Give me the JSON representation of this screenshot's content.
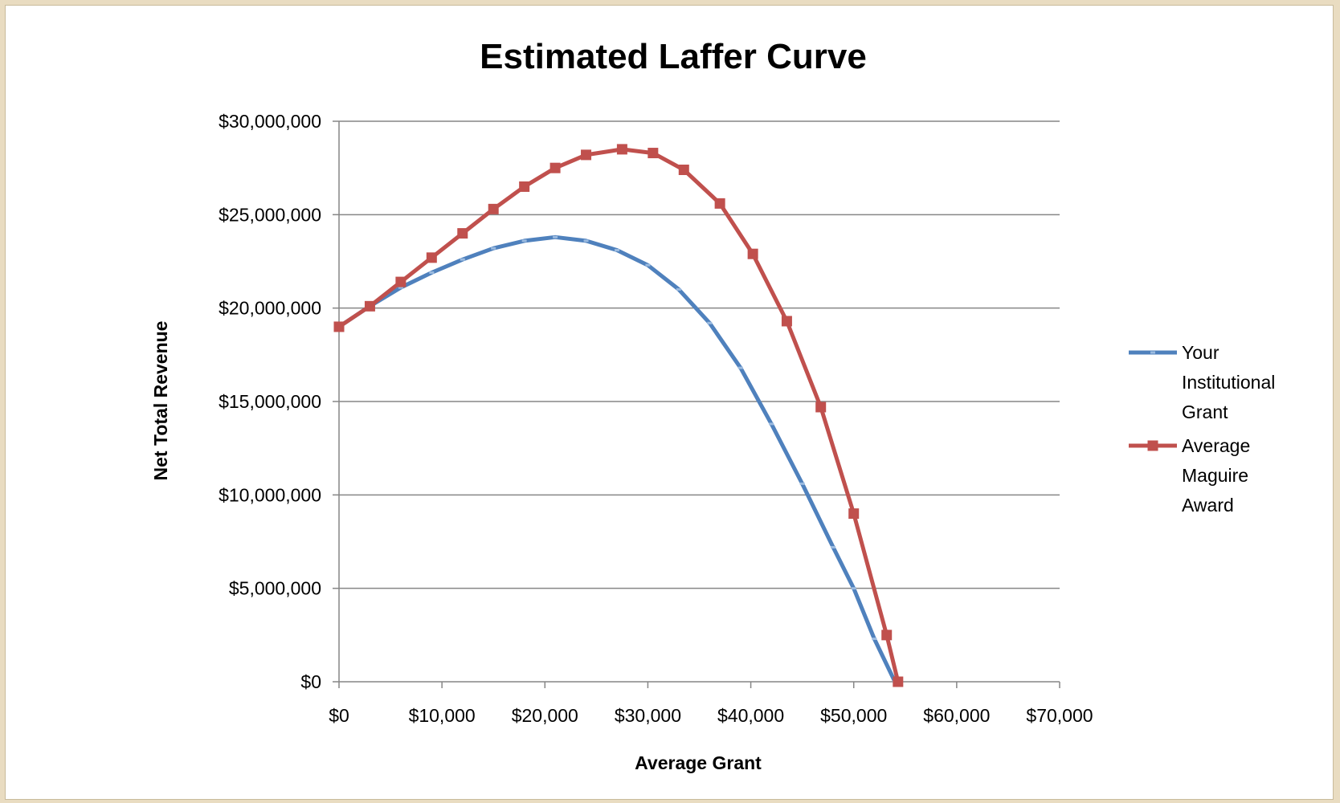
{
  "chart_data": {
    "type": "line",
    "title": "Estimated Laffer Curve",
    "xlabel": "Average Grant",
    "ylabel": "Net Total Revenue",
    "xlim": [
      0,
      70000
    ],
    "ylim": [
      0,
      30000000
    ],
    "x_ticks": [
      0,
      10000,
      20000,
      30000,
      40000,
      50000,
      60000,
      70000
    ],
    "x_tick_labels": [
      "$0",
      "$10,000",
      "$20,000",
      "$30,000",
      "$40,000",
      "$50,000",
      "$60,000",
      "$70,000"
    ],
    "y_ticks": [
      0,
      5000000,
      10000000,
      15000000,
      20000000,
      25000000,
      30000000
    ],
    "y_tick_labels": [
      "$0",
      "$5,000,000",
      "$10,000,000",
      "$15,000,000",
      "$20,000,000",
      "$25,000,000",
      "$30,000,000"
    ],
    "grid": "horizontal",
    "legend_position": "right",
    "series": [
      {
        "name_lines": [
          "Your",
          "Institutional",
          "Grant"
        ],
        "color": "#4f81bd",
        "marker": "small-dash",
        "points": [
          [
            0,
            19000000
          ],
          [
            3000,
            20100000
          ],
          [
            6000,
            21100000
          ],
          [
            9000,
            21900000
          ],
          [
            12000,
            22600000
          ],
          [
            15000,
            23200000
          ],
          [
            18000,
            23600000
          ],
          [
            21000,
            23800000
          ],
          [
            24000,
            23600000
          ],
          [
            27000,
            23100000
          ],
          [
            30000,
            22300000
          ],
          [
            33000,
            21000000
          ],
          [
            36000,
            19200000
          ],
          [
            39000,
            16800000
          ],
          [
            42000,
            13800000
          ],
          [
            45000,
            10600000
          ],
          [
            48000,
            7200000
          ],
          [
            50000,
            5000000
          ],
          [
            52000,
            2300000
          ],
          [
            54000,
            0
          ]
        ]
      },
      {
        "name_lines": [
          "Average",
          "Maguire",
          "Award"
        ],
        "color": "#c0504d",
        "marker": "square",
        "points": [
          [
            0,
            19000000
          ],
          [
            3000,
            20100000
          ],
          [
            6000,
            21400000
          ],
          [
            9000,
            22700000
          ],
          [
            12000,
            24000000
          ],
          [
            15000,
            25300000
          ],
          [
            18000,
            26500000
          ],
          [
            21000,
            27500000
          ],
          [
            24000,
            28200000
          ],
          [
            27500,
            28500000
          ],
          [
            30500,
            28300000
          ],
          [
            33500,
            27400000
          ],
          [
            37000,
            25600000
          ],
          [
            40200,
            22900000
          ],
          [
            43500,
            19300000
          ],
          [
            46800,
            14700000
          ],
          [
            50000,
            9000000
          ],
          [
            53200,
            2500000
          ],
          [
            54300,
            0
          ]
        ]
      }
    ]
  }
}
